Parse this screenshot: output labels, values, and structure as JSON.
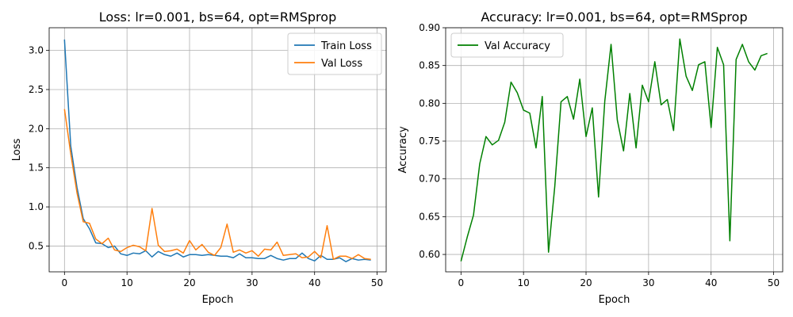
{
  "chart_data": [
    {
      "type": "line",
      "title": "Loss: lr=0.001, bs=64, opt=RMSprop",
      "xlabel": "Epoch",
      "ylabel": "Loss",
      "xlim": [
        -2.45,
        51.45
      ],
      "ylim": [
        0.17,
        3.29
      ],
      "xticks": [
        0,
        10,
        20,
        30,
        40,
        50
      ],
      "yticks": [
        0.5,
        1.0,
        1.5,
        2.0,
        2.5,
        3.0
      ],
      "ytick_labels": [
        "0.5",
        "1.0",
        "1.5",
        "2.0",
        "2.5",
        "3.0"
      ],
      "grid": true,
      "legend_position": "top-right",
      "x": [
        0,
        1,
        2,
        3,
        4,
        5,
        6,
        7,
        8,
        9,
        10,
        11,
        12,
        13,
        14,
        15,
        16,
        17,
        18,
        19,
        20,
        21,
        22,
        23,
        24,
        25,
        26,
        27,
        28,
        29,
        30,
        31,
        32,
        33,
        34,
        35,
        36,
        37,
        38,
        39,
        40,
        41,
        42,
        43,
        44,
        45,
        46,
        47,
        48,
        49
      ],
      "series": [
        {
          "name": "Train Loss",
          "color": "#1f77b4",
          "values": [
            3.14,
            1.78,
            1.25,
            0.85,
            0.72,
            0.54,
            0.53,
            0.48,
            0.5,
            0.4,
            0.38,
            0.41,
            0.4,
            0.44,
            0.36,
            0.43,
            0.39,
            0.37,
            0.41,
            0.36,
            0.39,
            0.39,
            0.38,
            0.39,
            0.38,
            0.37,
            0.37,
            0.35,
            0.4,
            0.35,
            0.35,
            0.34,
            0.34,
            0.38,
            0.34,
            0.32,
            0.34,
            0.34,
            0.41,
            0.34,
            0.31,
            0.38,
            0.33,
            0.33,
            0.35,
            0.3,
            0.34,
            0.32,
            0.33,
            0.32
          ]
        },
        {
          "name": "Val Loss",
          "color": "#ff7f0e",
          "values": [
            2.25,
            1.68,
            1.18,
            0.81,
            0.79,
            0.59,
            0.53,
            0.6,
            0.45,
            0.43,
            0.48,
            0.51,
            0.49,
            0.44,
            0.98,
            0.51,
            0.43,
            0.44,
            0.46,
            0.41,
            0.57,
            0.45,
            0.52,
            0.42,
            0.38,
            0.48,
            0.78,
            0.42,
            0.45,
            0.41,
            0.44,
            0.37,
            0.46,
            0.45,
            0.55,
            0.38,
            0.39,
            0.4,
            0.35,
            0.36,
            0.43,
            0.35,
            0.76,
            0.33,
            0.37,
            0.37,
            0.34,
            0.39,
            0.34,
            0.33
          ]
        }
      ]
    },
    {
      "type": "line",
      "title": "Accuracy: lr=0.001, bs=64, opt=RMSprop",
      "xlabel": "Epoch",
      "ylabel": "Accuracy",
      "xlim": [
        -2.45,
        51.45
      ],
      "ylim": [
        0.577,
        0.9
      ],
      "xticks": [
        0,
        10,
        20,
        30,
        40,
        50
      ],
      "yticks": [
        0.6,
        0.65,
        0.7,
        0.75,
        0.8,
        0.85,
        0.9
      ],
      "ytick_labels": [
        "0.60",
        "0.65",
        "0.70",
        "0.75",
        "0.80",
        "0.85",
        "0.90"
      ],
      "grid": true,
      "legend_position": "top-left",
      "x": [
        0,
        1,
        2,
        3,
        4,
        5,
        6,
        7,
        8,
        9,
        10,
        11,
        12,
        13,
        14,
        15,
        16,
        17,
        18,
        19,
        20,
        21,
        22,
        23,
        24,
        25,
        26,
        27,
        28,
        29,
        30,
        31,
        32,
        33,
        34,
        35,
        36,
        37,
        38,
        39,
        40,
        41,
        42,
        43,
        44,
        45,
        46,
        47,
        48,
        49
      ],
      "series": [
        {
          "name": "Val Accuracy",
          "color": "#008000",
          "values": [
            0.591,
            0.623,
            0.652,
            0.72,
            0.756,
            0.745,
            0.751,
            0.775,
            0.828,
            0.814,
            0.791,
            0.787,
            0.741,
            0.809,
            0.603,
            0.69,
            0.802,
            0.809,
            0.779,
            0.832,
            0.756,
            0.794,
            0.676,
            0.803,
            0.878,
            0.778,
            0.737,
            0.813,
            0.741,
            0.824,
            0.802,
            0.855,
            0.798,
            0.805,
            0.764,
            0.885,
            0.836,
            0.817,
            0.851,
            0.855,
            0.768,
            0.874,
            0.851,
            0.618,
            0.858,
            0.878,
            0.855,
            0.844,
            0.863,
            0.866
          ]
        }
      ]
    }
  ]
}
